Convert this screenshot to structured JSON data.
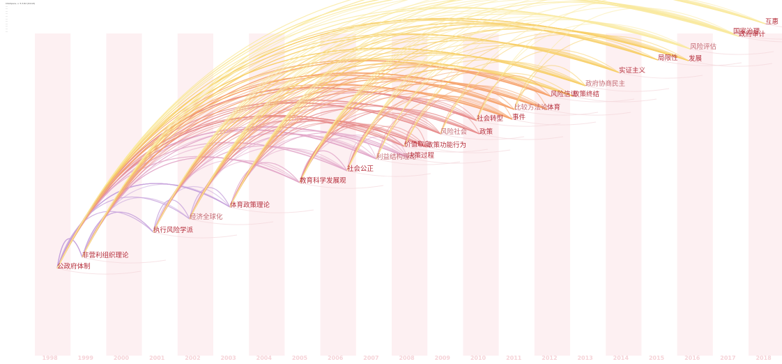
{
  "meta_lines": [
    "CiteSpace, v. 5.3.R2 (64-bit)",
    "...",
    "...",
    "...",
    "...",
    "...",
    "...",
    "...",
    "...",
    "...",
    "...",
    "..."
  ],
  "years": [
    "1998",
    "1999",
    "2000",
    "2001",
    "2002",
    "2003",
    "2004",
    "2005",
    "2006",
    "2007",
    "2008",
    "2009",
    "2010",
    "2011",
    "2012",
    "2013",
    "2014",
    "2015",
    "2016",
    "2017",
    "2018"
  ],
  "colors": {
    "band": "#fdf0f2",
    "year_text": "#f6d3d8",
    "label": "#b52d3a",
    "label_faint": "#c46a73",
    "edge_palette": [
      "#c7a2dc",
      "#e2a6c8",
      "#e88c8c",
      "#f5a36c",
      "#f7cf6a",
      "#faeaa0"
    ]
  },
  "nodes": [
    {
      "id": "n1",
      "label": "公政府体制",
      "year": "1998"
    },
    {
      "id": "n2",
      "label": "非营利组织理论",
      "year": "1999"
    },
    {
      "id": "n3",
      "label": "执行风险学派",
      "year": "2001"
    },
    {
      "id": "n4",
      "label": "经济全球化",
      "year": "2002"
    },
    {
      "id": "n5",
      "label": "体育政策理论",
      "year": "2003"
    },
    {
      "id": "n6",
      "label": "教育科学发展观",
      "year": "2005"
    },
    {
      "id": "n7",
      "label": "社会公正",
      "year": "2006"
    },
    {
      "id": "n8",
      "label": "利益结构理论",
      "year": "2007"
    },
    {
      "id": "n9",
      "label": "决策过程",
      "year": "2007"
    },
    {
      "id": "n10",
      "label": "价值取向",
      "year": "2008"
    },
    {
      "id": "n11",
      "label": "政策功能行为",
      "year": "2009"
    },
    {
      "id": "n12",
      "label": "风险社会",
      "year": "2009"
    },
    {
      "id": "n13",
      "label": "政策",
      "year": "2010"
    },
    {
      "id": "n14",
      "label": "社会转型",
      "year": "2010"
    },
    {
      "id": "n15",
      "label": "事件",
      "year": "2011"
    },
    {
      "id": "n16",
      "label": "比较方法论",
      "year": "2011"
    },
    {
      "id": "n17",
      "label": "体育",
      "year": "2012"
    },
    {
      "id": "n18",
      "label": "风险信访",
      "year": "2012"
    },
    {
      "id": "n19",
      "label": "政策终结",
      "year": "2013"
    },
    {
      "id": "n20",
      "label": "政府协商民主",
      "year": "2013"
    },
    {
      "id": "n21",
      "label": "实证主义",
      "year": "2014"
    },
    {
      "id": "n22",
      "label": "局限性",
      "year": "2015"
    },
    {
      "id": "n23",
      "label": "发展",
      "year": "2016"
    },
    {
      "id": "n24",
      "label": "风险评估",
      "year": "2016"
    },
    {
      "id": "n25",
      "label": "政府审计",
      "year": "2017"
    },
    {
      "id": "n26",
      "label": "国家治理",
      "year": "2017"
    },
    {
      "id": "n27",
      "label": "互惠",
      "year": "2018"
    }
  ]
}
